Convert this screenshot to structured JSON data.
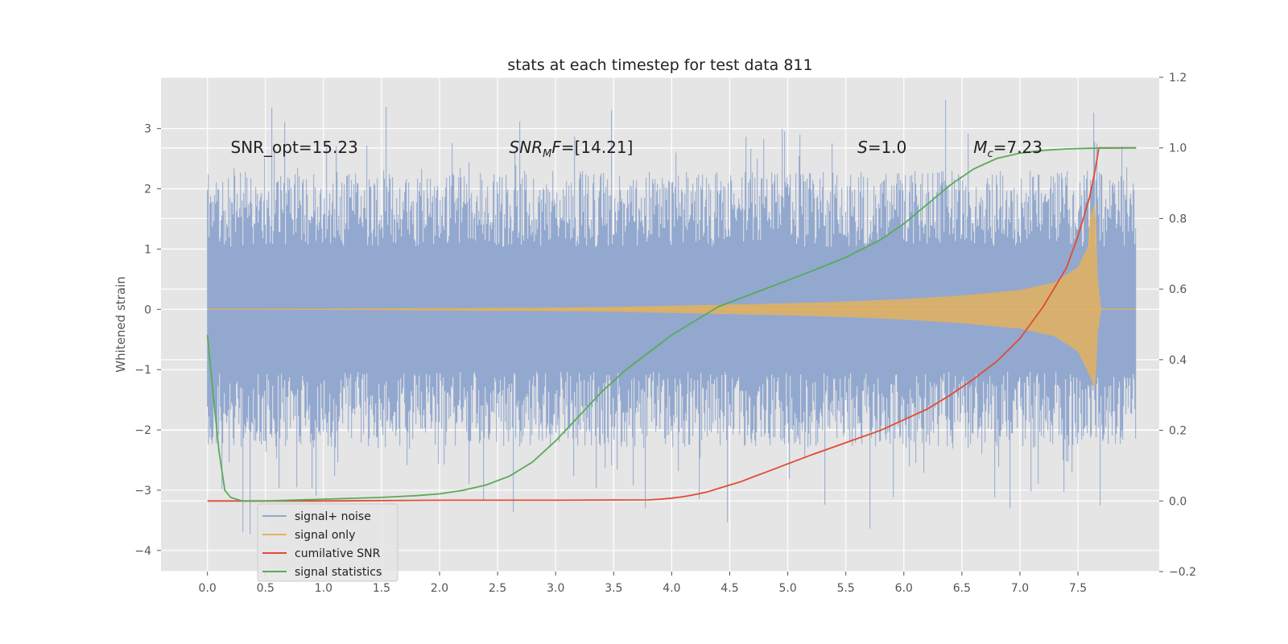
{
  "chart_data": {
    "type": "line",
    "title": "stats at each timestep for test data 811",
    "ylabel": "Whitened strain",
    "xlabel": "",
    "xlim": [
      -0.4,
      8.2
    ],
    "ylim": [
      -4.35,
      3.85
    ],
    "y2lim": [
      -0.2,
      1.2
    ],
    "xticks": [
      0.0,
      0.5,
      1.0,
      1.5,
      2.0,
      2.5,
      3.0,
      3.5,
      4.0,
      4.5,
      5.0,
      5.5,
      6.0,
      6.5,
      7.0,
      7.5
    ],
    "xtick_labels": [
      "0.0",
      "0.5",
      "1.0",
      "1.5",
      "2.0",
      "2.5",
      "3.0",
      "3.5",
      "4.0",
      "4.5",
      "5.0",
      "5.5",
      "6.0",
      "6.5",
      "7.0",
      "7.5"
    ],
    "yticks": [
      3,
      2,
      1,
      0,
      -1,
      -2,
      -3,
      -4
    ],
    "ytick_labels": [
      "3",
      "2",
      "1",
      "0",
      "−1",
      "−2",
      "−3",
      "−4"
    ],
    "y2ticks": [
      1.2,
      1.0,
      0.8,
      0.6,
      0.4,
      0.2,
      0.0,
      -0.2
    ],
    "y2tick_labels": [
      "1.2",
      "1.0",
      "0.8",
      "0.6",
      "0.4",
      "0.2",
      "0.0",
      "−0.2"
    ],
    "grid": true,
    "legend_position": "lower-left",
    "annotations": [
      {
        "text": "SNR_opt=15.23",
        "x": 0.2,
        "y": 2.7
      },
      {
        "text": "SNR_MF=[14.21]",
        "x": 2.6,
        "y": 2.7
      },
      {
        "text": "S=1.0",
        "x": 5.6,
        "y": 2.7
      },
      {
        "text": "M_c=7.23",
        "x": 6.6,
        "y": 2.7
      }
    ],
    "series": [
      {
        "name": "signal+ noise",
        "axis": "left",
        "color": "#92a8cf",
        "x_range": [
          0.0,
          8.0
        ],
        "envelope_upper": 2.3,
        "envelope_lower": -2.3,
        "peak_max": 3.5,
        "peak_min": -4.0
      },
      {
        "name": "signal only",
        "axis": "left",
        "color": "#e3b25e",
        "envelope_x": [
          0.0,
          1.0,
          2.0,
          3.0,
          3.5,
          4.0,
          4.5,
          5.0,
          5.5,
          6.0,
          6.5,
          7.0,
          7.3,
          7.5,
          7.6,
          7.65,
          7.67,
          7.7,
          8.0
        ],
        "envelope_amp": [
          0.0,
          0.01,
          0.02,
          0.03,
          0.04,
          0.06,
          0.08,
          0.1,
          0.13,
          0.17,
          0.23,
          0.32,
          0.45,
          0.7,
          1.1,
          1.35,
          0.4,
          0.0,
          0.0
        ]
      },
      {
        "name": "cumilative SNR",
        "axis": "right",
        "color": "#e24a33",
        "x": [
          0.0,
          1.0,
          2.0,
          3.0,
          3.8,
          3.9,
          4.0,
          4.1,
          4.2,
          4.3,
          4.4,
          4.5,
          4.6,
          4.7,
          4.8,
          5.0,
          5.2,
          5.5,
          5.8,
          6.0,
          6.2,
          6.4,
          6.6,
          6.8,
          7.0,
          7.2,
          7.4,
          7.5,
          7.6,
          7.65,
          7.68,
          7.7,
          8.0
        ],
        "y": [
          0.0,
          0.0,
          0.002,
          0.002,
          0.003,
          0.005,
          0.008,
          0.012,
          0.018,
          0.025,
          0.035,
          0.045,
          0.055,
          0.068,
          0.08,
          0.105,
          0.13,
          0.165,
          0.2,
          0.23,
          0.26,
          0.3,
          0.345,
          0.395,
          0.46,
          0.55,
          0.66,
          0.75,
          0.86,
          0.94,
          1.0,
          1.0,
          1.0
        ]
      },
      {
        "name": "signal statistics",
        "axis": "right",
        "color": "#5aaa58",
        "x": [
          0.0,
          0.05,
          0.1,
          0.15,
          0.2,
          0.3,
          0.5,
          1.0,
          1.5,
          1.8,
          2.0,
          2.2,
          2.4,
          2.6,
          2.8,
          3.0,
          3.2,
          3.4,
          3.6,
          3.8,
          4.0,
          4.2,
          4.4,
          4.6,
          4.8,
          5.0,
          5.2,
          5.5,
          5.8,
          6.0,
          6.2,
          6.4,
          6.6,
          6.8,
          7.0,
          7.2,
          7.4,
          7.6,
          8.0
        ],
        "y": [
          0.47,
          0.3,
          0.14,
          0.03,
          0.01,
          0.0,
          0.0,
          0.005,
          0.01,
          0.015,
          0.02,
          0.03,
          0.045,
          0.07,
          0.11,
          0.17,
          0.24,
          0.31,
          0.37,
          0.42,
          0.47,
          0.51,
          0.55,
          0.575,
          0.6,
          0.625,
          0.65,
          0.69,
          0.74,
          0.785,
          0.84,
          0.895,
          0.94,
          0.97,
          0.985,
          0.993,
          0.997,
          0.999,
          1.0
        ]
      }
    ]
  }
}
